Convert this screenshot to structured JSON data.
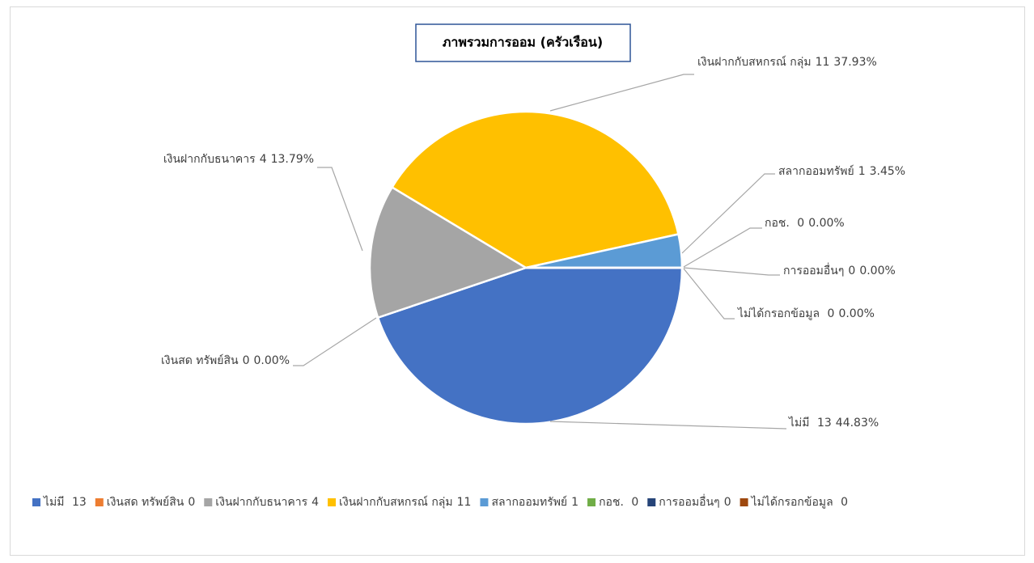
{
  "chart_data": {
    "type": "pie",
    "title": "ภาพรวมการออม (ครัวเรือน)",
    "categories": [
      "ไม่มี ",
      "เงินสด ทรัพย์สิน",
      "เงินฝากกับธนาคาร",
      "เงินฝากกับสหกรณ์ กลุ่ม",
      "สลากออมทรัพย์",
      "กอช. ",
      "การออมอื่นๆ",
      "ไม่ได้กรอกข้อมูล "
    ],
    "values": [
      13,
      0,
      4,
      11,
      1,
      0,
      0,
      0
    ],
    "percent_labels": [
      "44.83%",
      "0.00%",
      "13.79%",
      "37.93%",
      "3.45%",
      "0.00%",
      "0.00%",
      "0.00%"
    ],
    "colors": [
      "#4472c4",
      "#ed7d31",
      "#a5a5a5",
      "#ffc000",
      "#5b9bd5",
      "#70ad47",
      "#264478",
      "#9e480e"
    ],
    "legend": "bottom"
  }
}
